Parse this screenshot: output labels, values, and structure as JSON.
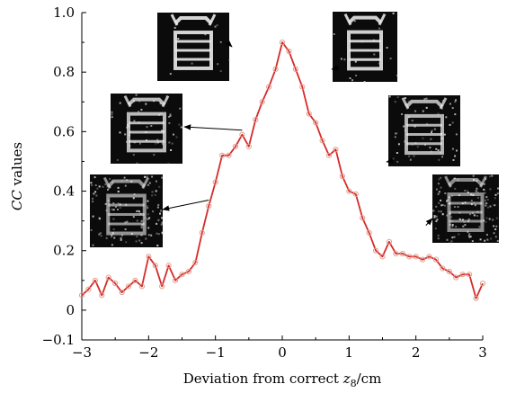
{
  "chart_data": {
    "type": "line",
    "xlabel": "Deviation from correct z8/cm",
    "xlabel_parts": {
      "pre": "Deviation from correct ",
      "var": "z",
      "sub": "8",
      "post": "/cm"
    },
    "ylabel": "CC values",
    "ylabel_parts": {
      "var": "CC",
      "post": " values"
    },
    "xlim": [
      -3,
      3
    ],
    "ylim": [
      -0.1,
      1.0
    ],
    "x_ticks": [
      -3,
      -2,
      -1,
      0,
      1,
      2,
      3
    ],
    "x_tick_labels": [
      "−3",
      "−2",
      "−1",
      "0",
      "1",
      "2",
      "3"
    ],
    "y_ticks": [
      -0.1,
      0,
      0.2,
      0.4,
      0.6,
      0.8,
      1.0
    ],
    "y_tick_labels": [
      "−0.1",
      "0",
      "0.2",
      "0.4",
      "0.6",
      "0.8",
      "1.0"
    ],
    "grid": false,
    "series": [
      {
        "color": "#d62b2b",
        "marker_color": "#e0a090",
        "x": [
          -3.0,
          -2.9,
          -2.8,
          -2.7,
          -2.6,
          -2.5,
          -2.4,
          -2.3,
          -2.2,
          -2.1,
          -2.0,
          -1.9,
          -1.8,
          -1.7,
          -1.6,
          -1.5,
          -1.4,
          -1.3,
          -1.2,
          -1.1,
          -1.0,
          -0.9,
          -0.8,
          -0.7,
          -0.6,
          -0.5,
          -0.4,
          -0.3,
          -0.2,
          -0.1,
          0.0,
          0.1,
          0.2,
          0.3,
          0.4,
          0.5,
          0.6,
          0.7,
          0.8,
          0.9,
          1.0,
          1.1,
          1.2,
          1.3,
          1.4,
          1.5,
          1.6,
          1.7,
          1.8,
          1.9,
          2.0,
          2.1,
          2.2,
          2.3,
          2.4,
          2.5,
          2.6,
          2.7,
          2.8,
          2.9,
          3.0
        ],
        "y": [
          0.05,
          0.07,
          0.1,
          0.05,
          0.11,
          0.09,
          0.06,
          0.08,
          0.1,
          0.08,
          0.18,
          0.15,
          0.08,
          0.15,
          0.1,
          0.12,
          0.13,
          0.16,
          0.26,
          0.35,
          0.43,
          0.52,
          0.52,
          0.55,
          0.59,
          0.55,
          0.64,
          0.7,
          0.75,
          0.81,
          0.9,
          0.87,
          0.81,
          0.75,
          0.66,
          0.63,
          0.57,
          0.52,
          0.54,
          0.45,
          0.4,
          0.39,
          0.31,
          0.26,
          0.2,
          0.18,
          0.23,
          0.19,
          0.19,
          0.18,
          0.18,
          0.17,
          0.18,
          0.17,
          0.14,
          0.13,
          0.11,
          0.12,
          0.12,
          0.04,
          0.09
        ]
      }
    ],
    "insets": [
      {
        "name": "inset-upper-left",
        "noise": 0.05,
        "target_x": -0.8,
        "target_y": 0.895
      },
      {
        "name": "inset-mid-left",
        "noise": 0.25,
        "target_x": -0.6,
        "target_y": 0.605
      },
      {
        "name": "inset-lower-left",
        "noise": 0.55,
        "target_x": -1.1,
        "target_y": 0.37
      },
      {
        "name": "inset-upper-right",
        "noise": 0.08,
        "target_x": 0.85,
        "target_y": 0.815
      },
      {
        "name": "inset-mid-right",
        "noise": 0.3,
        "target_x": 1.6,
        "target_y": 0.5
      },
      {
        "name": "inset-lower-right",
        "noise": 0.6,
        "target_x": 2.15,
        "target_y": 0.285
      }
    ]
  }
}
